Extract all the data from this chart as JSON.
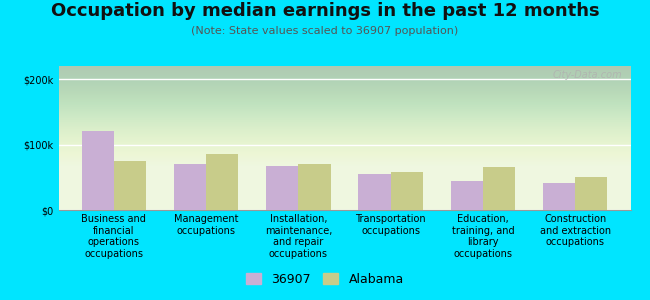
{
  "title": "Occupation by median earnings in the past 12 months",
  "subtitle": "(Note: State values scaled to 36907 population)",
  "categories": [
    "Business and\nfinancial\noperations\noccupations",
    "Management\noccupations",
    "Installation,\nmaintenance,\nand repair\noccupations",
    "Transportation\noccupations",
    "Education,\ntraining, and\nlibrary\noccupations",
    "Construction\nand extraction\noccupations"
  ],
  "values_36907": [
    120000,
    70000,
    67000,
    55000,
    45000,
    42000
  ],
  "values_alabama": [
    75000,
    85000,
    70000,
    58000,
    65000,
    50000
  ],
  "color_36907": "#c9afd4",
  "color_alabama": "#c8cc8a",
  "bar_width": 0.35,
  "ylim": [
    0,
    220000
  ],
  "yticks": [
    0,
    100000,
    200000
  ],
  "ytick_labels": [
    "$0",
    "$100k",
    "$200k"
  ],
  "legend_label_36907": "36907",
  "legend_label_alabama": "Alabama",
  "outer_bg": "#00e5ff",
  "plot_bg_color": "#eaf5df",
  "watermark": "City-Data.com",
  "title_fontsize": 13,
  "subtitle_fontsize": 8,
  "tick_label_fontsize": 7,
  "legend_fontsize": 9
}
